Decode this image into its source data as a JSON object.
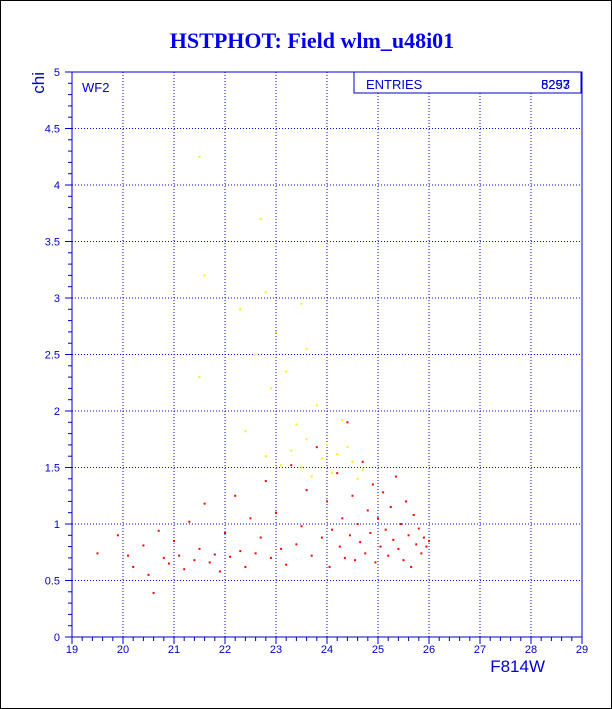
{
  "chart_data": {
    "type": "scatter",
    "title": "HSTPHOT: Field wlm_u48i01",
    "xlabel": "F814W",
    "ylabel": "chi",
    "xlim": [
      19,
      29
    ],
    "ylim": [
      0,
      5
    ],
    "x_ticks": [
      19,
      20,
      21,
      22,
      23,
      24,
      25,
      26,
      27,
      28,
      29
    ],
    "y_ticks": [
      0,
      0.5,
      1,
      1.5,
      2,
      2.5,
      3,
      3.5,
      4,
      4.5,
      5
    ],
    "grid": true,
    "panel_label": "WF2",
    "stats_box": {
      "label": "ENTRIES",
      "values": [
        "8297",
        "5253"
      ]
    },
    "colors": {
      "axis": "#0000cc",
      "title": "#0000ee",
      "series_primary": "#ff0000",
      "series_secondary": "#ffee00"
    },
    "series": [
      {
        "color": "#ff0000",
        "points": [
          [
            19.5,
            0.74
          ],
          [
            19.9,
            0.9
          ],
          [
            20.1,
            0.72
          ],
          [
            20.2,
            0.62
          ],
          [
            20.4,
            0.81
          ],
          [
            20.5,
            0.55
          ],
          [
            20.6,
            0.39
          ],
          [
            20.7,
            0.94
          ],
          [
            20.8,
            0.7
          ],
          [
            20.9,
            0.65
          ],
          [
            21.0,
            0.85
          ],
          [
            21.1,
            0.72
          ],
          [
            21.2,
            0.6
          ],
          [
            21.3,
            1.02
          ],
          [
            21.4,
            0.68
          ],
          [
            21.5,
            0.78
          ],
          [
            21.6,
            1.18
          ],
          [
            21.7,
            0.66
          ],
          [
            21.8,
            0.73
          ],
          [
            21.9,
            0.58
          ],
          [
            22.0,
            0.92
          ],
          [
            22.1,
            0.71
          ],
          [
            22.2,
            1.25
          ],
          [
            22.3,
            0.76
          ],
          [
            22.4,
            0.62
          ],
          [
            22.5,
            1.05
          ],
          [
            22.6,
            0.74
          ],
          [
            22.7,
            0.88
          ],
          [
            22.8,
            1.38
          ],
          [
            22.9,
            0.7
          ],
          [
            23.0,
            1.1
          ],
          [
            23.1,
            0.78
          ],
          [
            23.2,
            0.64
          ],
          [
            23.3,
            1.52
          ],
          [
            23.4,
            0.82
          ],
          [
            23.5,
            0.98
          ],
          [
            23.6,
            1.3
          ],
          [
            23.7,
            0.72
          ],
          [
            23.8,
            1.68
          ],
          [
            23.9,
            0.88
          ],
          [
            24.0,
            1.2
          ],
          [
            24.05,
            0.62
          ],
          [
            24.1,
            0.95
          ],
          [
            24.2,
            1.45
          ],
          [
            24.25,
            0.8
          ],
          [
            24.3,
            1.05
          ],
          [
            24.35,
            0.7
          ],
          [
            24.4,
            1.9
          ],
          [
            24.45,
            0.9
          ],
          [
            24.5,
            1.25
          ],
          [
            24.55,
            0.68
          ],
          [
            24.6,
            1.0
          ],
          [
            24.65,
            0.84
          ],
          [
            24.7,
            1.55
          ],
          [
            24.75,
            0.74
          ],
          [
            24.8,
            1.12
          ],
          [
            24.85,
            0.92
          ],
          [
            24.9,
            1.35
          ],
          [
            24.95,
            0.66
          ],
          [
            25.0,
            1.05
          ],
          [
            25.05,
            0.8
          ],
          [
            25.1,
            1.28
          ],
          [
            25.15,
            0.95
          ],
          [
            25.2,
            0.72
          ],
          [
            25.25,
            1.15
          ],
          [
            25.3,
            0.86
          ],
          [
            25.35,
            1.42
          ],
          [
            25.4,
            0.78
          ],
          [
            25.45,
            1.0
          ],
          [
            25.5,
            0.68
          ],
          [
            25.55,
            1.2
          ],
          [
            25.6,
            0.9
          ],
          [
            25.65,
            0.62
          ],
          [
            25.7,
            1.08
          ],
          [
            25.75,
            0.82
          ],
          [
            25.8,
            0.96
          ],
          [
            25.85,
            0.74
          ],
          [
            25.9,
            0.88
          ],
          [
            25.95,
            0.8
          ],
          [
            26.0,
            0.85
          ]
        ]
      },
      {
        "color": "#ffee00",
        "points": [
          [
            21.5,
            4.25
          ],
          [
            22.7,
            3.7
          ],
          [
            21.6,
            3.2
          ],
          [
            22.3,
            2.9
          ],
          [
            22.8,
            3.05
          ],
          [
            23.5,
            2.95
          ],
          [
            21.5,
            2.3
          ],
          [
            22.6,
            2.5
          ],
          [
            23.2,
            2.35
          ],
          [
            23.6,
            2.55
          ],
          [
            23.0,
            2.7
          ],
          [
            22.9,
            2.2
          ],
          [
            23.8,
            2.05
          ],
          [
            24.3,
            1.92
          ],
          [
            23.4,
            1.88
          ],
          [
            22.4,
            1.82
          ],
          [
            23.6,
            1.75
          ],
          [
            24.0,
            1.7
          ],
          [
            24.2,
            1.62
          ],
          [
            23.9,
            1.58
          ],
          [
            24.5,
            1.55
          ],
          [
            23.3,
            1.65
          ],
          [
            24.7,
            1.48
          ],
          [
            22.8,
            1.6
          ],
          [
            23.1,
            1.52
          ],
          [
            24.1,
            1.45
          ],
          [
            24.6,
            1.4
          ],
          [
            23.7,
            1.42
          ],
          [
            24.4,
            1.68
          ],
          [
            23.5,
            1.5
          ]
        ]
      }
    ]
  }
}
